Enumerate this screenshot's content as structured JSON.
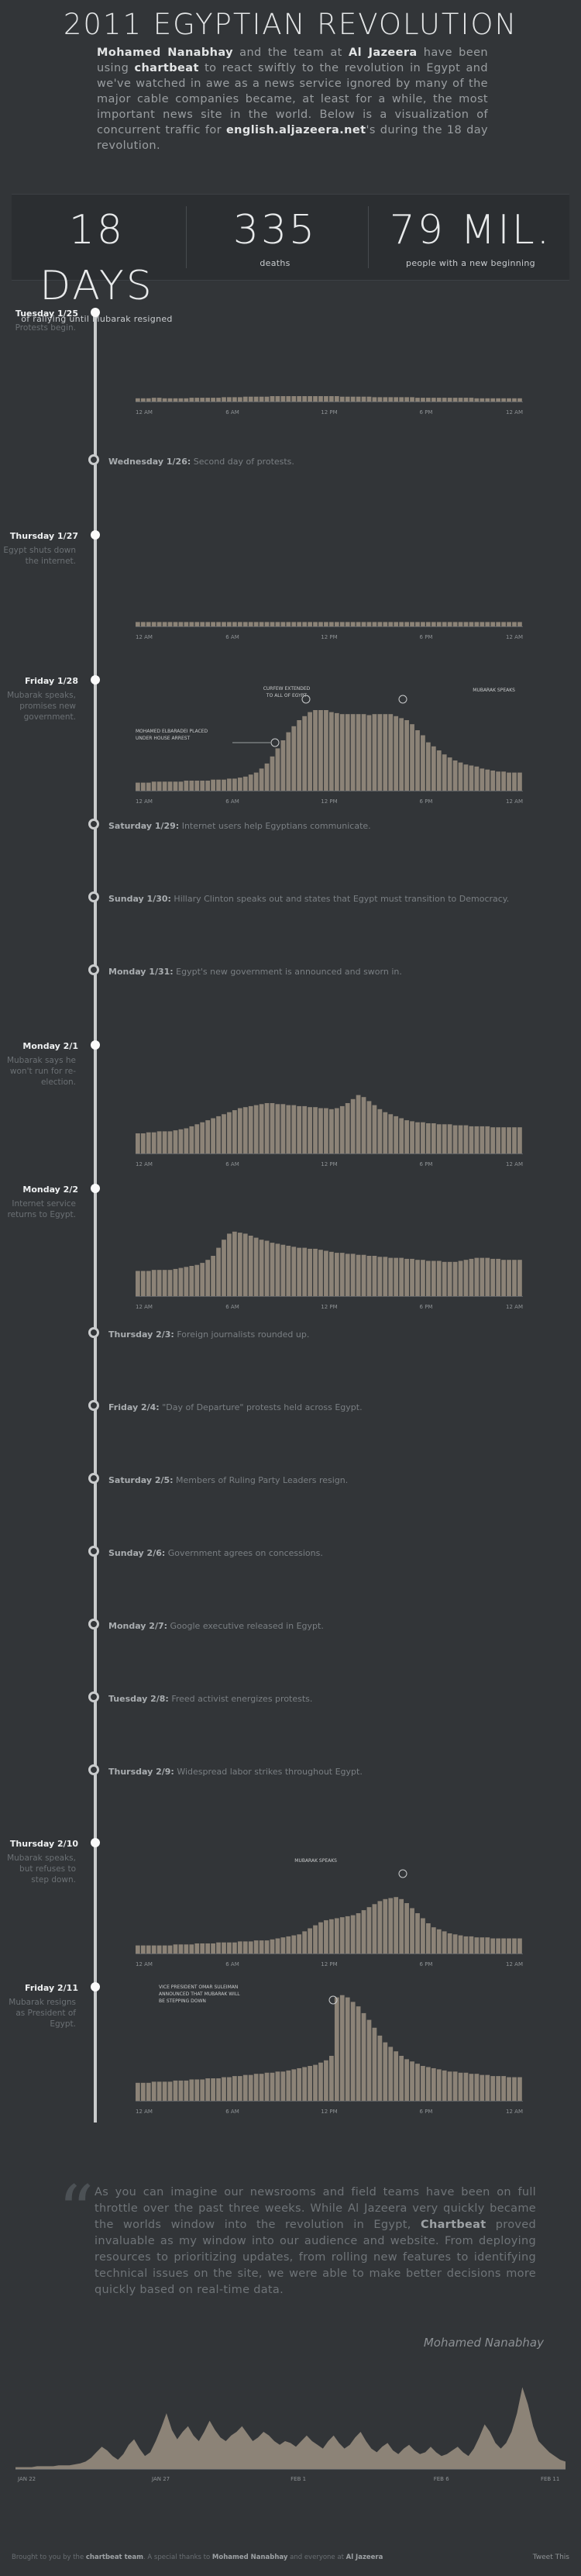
{
  "header": {
    "title": "2011 EGYPTIAN REVOLUTION",
    "intro": {
      "p1": "Mohamed Nanabhay",
      "p2": " and the team at ",
      "p3": "Al Jazeera",
      "p4": " have been using ",
      "p5": "chartbeat",
      "p6": " to react swiftly to the revolution in Egypt and we've watched in awe as a news service ignored by many of the major cable companies became, at least for a while, the most important news site in the world. Below is a visualization of concurrent traffic for ",
      "p7": "english.aljazeera.net",
      "p8": "'s during the 18 day revolution."
    }
  },
  "stats": [
    {
      "num": "18 DAYS",
      "label": "of rallying until Mubarak resigned"
    },
    {
      "num": "335",
      "label": "deaths"
    },
    {
      "num": "79 MIL.",
      "label": "people with a new beginning"
    }
  ],
  "timeline": {
    "small_events": [
      {
        "date": "Wednesday 1/26:",
        "text": " Second day of protests."
      },
      {
        "date": "Saturday 1/29:",
        "text": " Internet users help Egyptians communicate."
      },
      {
        "date": "Sunday 1/30:",
        "text": " Hillary Clinton speaks out and states that Egypt must transition to Democracy."
      },
      {
        "date": "Monday 1/31:",
        "text": " Egypt's new government is announced and sworn in."
      },
      {
        "date": "Thursday 2/3:",
        "text": " Foreign journalists rounded up."
      },
      {
        "date": "Friday 2/4:",
        "text": " \"Day of Departure\" protests held across Egypt."
      },
      {
        "date": "Saturday 2/5:",
        "text": " Members of Ruling Party Leaders resign."
      },
      {
        "date": "Sunday 2/6:",
        "text": " Government agrees on concessions."
      },
      {
        "date": "Monday 2/7:",
        "text": " Google executive released in Egypt."
      },
      {
        "date": "Tuesday 2/8:",
        "text": " Freed activist energizes protests."
      },
      {
        "date": "Thursday 2/9:",
        "text": " Widespread labor strikes throughout Egypt."
      }
    ],
    "big_events": [
      {
        "date": "Tuesday 1/25",
        "desc": "Protests begin."
      },
      {
        "date": "Thursday 1/27",
        "desc": "Egypt shuts down the internet."
      },
      {
        "date": "Friday 1/28",
        "desc": "Mubarak speaks, promises new government."
      },
      {
        "date": "Monday 2/1",
        "desc": "Mubarak says he won't run for re-election."
      },
      {
        "date": "Monday 2/2",
        "desc": "Internet service returns to Egypt."
      },
      {
        "date": "Thursday 2/10",
        "desc": "Mubarak speaks, but refuses to step down."
      },
      {
        "date": "Friday 2/11",
        "desc": "Mubarak resigns as President of Egypt."
      }
    ]
  },
  "chart_data": [
    {
      "type": "bar",
      "name": "Tuesday 1/25",
      "x_ticks": [
        "12 AM",
        "6 AM",
        "12 PM",
        "6 PM",
        "12 AM"
      ],
      "values": [
        6,
        6,
        6,
        7,
        7,
        6,
        6,
        6,
        6,
        6,
        7,
        7,
        7,
        7,
        7,
        7,
        8,
        8,
        8,
        8,
        9,
        9,
        9,
        9,
        9,
        10,
        10,
        10,
        10,
        10,
        10,
        10,
        10,
        10,
        10,
        10,
        10,
        10,
        9,
        9,
        9,
        9,
        9,
        9,
        8,
        8,
        8,
        8,
        8,
        8,
        8,
        8,
        7,
        7,
        7,
        7,
        7,
        7,
        7,
        7,
        7,
        7,
        7,
        6,
        6,
        6,
        6,
        6,
        6,
        6,
        6,
        6
      ]
    },
    {
      "type": "bar",
      "name": "Thursday 1/27",
      "x_ticks": [
        "12 AM",
        "6 AM",
        "12 PM",
        "6 PM",
        "12 AM"
      ],
      "values": [
        8,
        8,
        8,
        8,
        8,
        8,
        8,
        8,
        8,
        8,
        8,
        8,
        8,
        8,
        8,
        8,
        8,
        8,
        8,
        8,
        8,
        8,
        8,
        8,
        8,
        8,
        8,
        8,
        8,
        8,
        8,
        8,
        8,
        8,
        8,
        8,
        8,
        8,
        8,
        8,
        8,
        8,
        8,
        8,
        8,
        8,
        8,
        8,
        8,
        8,
        8,
        8,
        8,
        8,
        8,
        8,
        8,
        8,
        8,
        8,
        8,
        8,
        8,
        8,
        8,
        8,
        8,
        8,
        8,
        8,
        8,
        8
      ]
    },
    {
      "type": "bar",
      "name": "Friday 1/28",
      "x_ticks": [
        "12 AM",
        "6 AM",
        "12 PM",
        "6 PM",
        "12 AM"
      ],
      "annotations": [
        "MOHAMED ELBARADEI PLACED UNDER HOUSE ARREST",
        "CURFEW EXTENDED TO ALL OF EGYPT",
        "MUBARAK SPEAKS"
      ],
      "values": [
        8,
        8,
        8,
        9,
        9,
        9,
        9,
        9,
        9,
        10,
        10,
        10,
        10,
        10,
        11,
        11,
        11,
        12,
        12,
        13,
        14,
        16,
        18,
        22,
        27,
        34,
        42,
        50,
        58,
        64,
        70,
        74,
        78,
        80,
        80,
        80,
        78,
        77,
        76,
        76,
        76,
        76,
        76,
        75,
        76,
        76,
        76,
        76,
        74,
        72,
        70,
        66,
        60,
        55,
        48,
        44,
        40,
        36,
        33,
        30,
        28,
        26,
        25,
        24,
        22,
        21,
        20,
        19,
        19,
        18,
        18,
        18
      ]
    },
    {
      "type": "bar",
      "name": "Monday 2/1",
      "x_ticks": [
        "12 AM",
        "6 AM",
        "12 PM",
        "6 PM",
        "12 AM"
      ],
      "values": [
        20,
        20,
        21,
        21,
        22,
        22,
        22,
        23,
        24,
        25,
        27,
        29,
        31,
        33,
        35,
        37,
        39,
        41,
        43,
        45,
        46,
        47,
        48,
        49,
        50,
        50,
        49,
        49,
        48,
        48,
        47,
        47,
        46,
        46,
        45,
        45,
        44,
        45,
        47,
        50,
        54,
        58,
        56,
        52,
        48,
        44,
        41,
        39,
        37,
        35,
        33,
        32,
        31,
        31,
        30,
        30,
        29,
        29,
        29,
        28,
        28,
        28,
        27,
        27,
        27,
        27,
        26,
        26,
        26,
        26,
        26,
        26
      ]
    },
    {
      "type": "bar",
      "name": "Monday 2/2",
      "x_ticks": [
        "12 AM",
        "6 AM",
        "12 PM",
        "6 PM",
        "12 AM"
      ],
      "values": [
        25,
        25,
        25,
        26,
        26,
        26,
        26,
        27,
        28,
        29,
        30,
        31,
        33,
        36,
        40,
        48,
        56,
        62,
        64,
        63,
        62,
        60,
        58,
        56,
        55,
        53,
        52,
        51,
        50,
        49,
        48,
        48,
        47,
        47,
        46,
        45,
        44,
        43,
        43,
        42,
        42,
        41,
        41,
        40,
        40,
        39,
        39,
        38,
        38,
        38,
        37,
        37,
        36,
        36,
        35,
        35,
        35,
        34,
        34,
        34,
        35,
        36,
        37,
        38,
        38,
        38,
        37,
        37,
        36,
        36,
        36,
        36
      ]
    },
    {
      "type": "bar",
      "name": "Thursday 2/10",
      "x_ticks": [
        "12 AM",
        "6 AM",
        "12 PM",
        "6 PM",
        "12 AM"
      ],
      "annotations": [
        "MUBARAK SPEAKS"
      ],
      "values": [
        8,
        8,
        8,
        8,
        8,
        8,
        8,
        9,
        9,
        9,
        9,
        10,
        10,
        10,
        10,
        11,
        11,
        11,
        11,
        12,
        12,
        12,
        13,
        13,
        13,
        14,
        15,
        16,
        17,
        18,
        19,
        22,
        25,
        28,
        31,
        33,
        34,
        35,
        36,
        37,
        38,
        40,
        43,
        46,
        49,
        52,
        54,
        55,
        56,
        54,
        50,
        45,
        40,
        35,
        30,
        26,
        24,
        22,
        20,
        19,
        18,
        17,
        17,
        16,
        16,
        16,
        15,
        15,
        15,
        15,
        15,
        15
      ]
    },
    {
      "type": "bar",
      "name": "Friday 2/11",
      "x_ticks": [
        "12 AM",
        "6 AM",
        "12 PM",
        "6 PM",
        "12 AM"
      ],
      "annotations": [
        "VICE PRESIDENT OMAR SULEIMAN ANNOUNCED THAT MUBARAK WILL BE STEPPING DOWN"
      ],
      "values": [
        16,
        16,
        16,
        17,
        17,
        17,
        17,
        18,
        18,
        18,
        19,
        19,
        19,
        20,
        20,
        20,
        21,
        21,
        22,
        22,
        23,
        23,
        24,
        24,
        25,
        25,
        26,
        26,
        27,
        28,
        29,
        30,
        31,
        32,
        34,
        36,
        40,
        92,
        94,
        92,
        88,
        84,
        78,
        72,
        65,
        58,
        52,
        48,
        44,
        40,
        37,
        35,
        33,
        31,
        30,
        29,
        28,
        27,
        26,
        26,
        25,
        25,
        24,
        24,
        23,
        23,
        22,
        22,
        22,
        21,
        21,
        21
      ]
    },
    {
      "type": "area",
      "name": "overview",
      "x_ticks": [
        "JAN 22",
        "JAN 27",
        "FEB 1",
        "FEB 6",
        "FEB 11"
      ],
      "values": [
        2,
        2,
        2,
        2,
        3,
        3,
        3,
        3,
        4,
        4,
        4,
        5,
        6,
        8,
        12,
        18,
        24,
        20,
        14,
        10,
        16,
        26,
        32,
        22,
        14,
        18,
        30,
        44,
        60,
        42,
        32,
        40,
        46,
        36,
        30,
        40,
        52,
        42,
        34,
        30,
        36,
        40,
        46,
        38,
        30,
        34,
        40,
        36,
        30,
        26,
        30,
        28,
        24,
        30,
        36,
        30,
        26,
        22,
        30,
        36,
        28,
        22,
        26,
        34,
        40,
        30,
        22,
        18,
        24,
        28,
        20,
        16,
        22,
        26,
        20,
        16,
        18,
        24,
        18,
        14,
        16,
        20,
        24,
        18,
        14,
        22,
        34,
        48,
        40,
        28,
        22,
        28,
        40,
        60,
        88,
        70,
        46,
        30,
        24,
        18,
        14,
        10,
        8
      ]
    }
  ],
  "quote": {
    "text1": "As you can imagine our newsrooms and field teams have been on full throttle over the past three weeks. While Al Jazeera very quickly became the worlds window into the revolution in Egypt, ",
    "brand": "Chartbeat",
    "text2": " proved invaluable as my window into our audience and website. From deploying resources to prioritizing updates, from rolling new features to identifying technical issues on the site, we were able to make better decisions more quickly based on real-time data.",
    "author": "Mohamed Nanabhay"
  },
  "footer": {
    "left1": "Brought to you by the ",
    "left2": "chartbeat team",
    "left3": ". A special thanks to ",
    "left4": "Mohamed Nanabhay",
    "left5": " and everyone at ",
    "left6": "Al Jazeera",
    "tweet": "Tweet This"
  }
}
